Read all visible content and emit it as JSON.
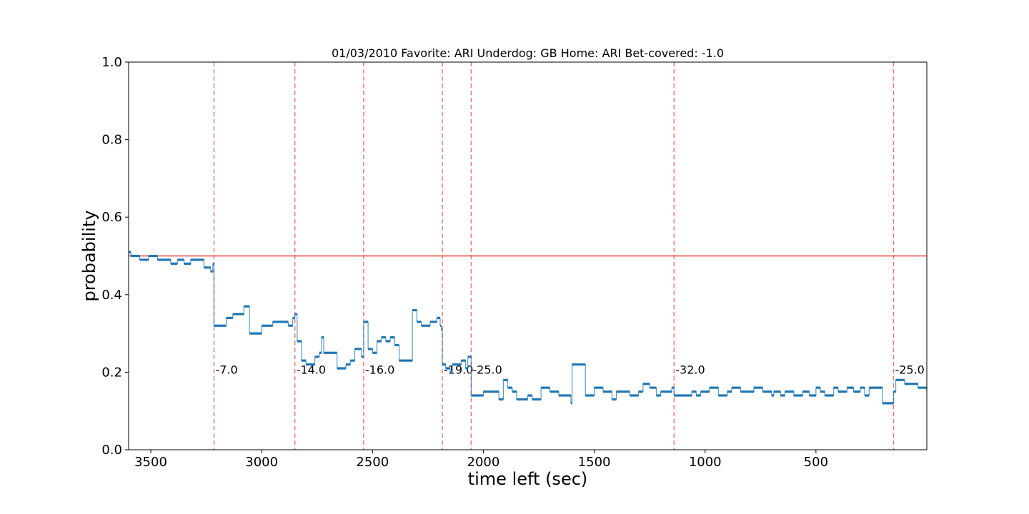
{
  "chart_data": {
    "type": "line",
    "title": "01/03/2010 Favorite: ARI Underdog: GB Home: ARI Bet-covered: -1.0",
    "xlabel": "time left (sec)",
    "ylabel": "probability",
    "xlim": [
      3600,
      0
    ],
    "ylim": [
      0.0,
      1.0
    ],
    "x_ticks": [
      3500,
      3000,
      2500,
      2000,
      1500,
      1000,
      500
    ],
    "x_tick_labels": [
      "3500",
      "3000",
      "2500",
      "2000",
      "1500",
      "1000",
      "500"
    ],
    "y_ticks": [
      0.0,
      0.2,
      0.4,
      0.6,
      0.8,
      1.0
    ],
    "y_tick_labels": [
      "0.0",
      "0.2",
      "0.4",
      "0.6",
      "0.8",
      "1.0"
    ],
    "grid": false,
    "reference_line": {
      "y": 0.5,
      "color": "#e8443a"
    },
    "colors": {
      "series": "#1f77b4",
      "reference": "#e8443a",
      "events": "#f07070"
    },
    "events": [
      {
        "x": 3215,
        "label": "-7.0"
      },
      {
        "x": 2850,
        "label": "-14.0"
      },
      {
        "x": 2540,
        "label": "-16.0"
      },
      {
        "x": 2185,
        "label": "-19.0"
      },
      {
        "x": 2055,
        "label": "-25.0"
      },
      {
        "x": 1140,
        "label": "-32.0"
      },
      {
        "x": 150,
        "label": "-25.0"
      }
    ],
    "series": [
      {
        "x": [
          3600,
          3590,
          3550,
          3510,
          3470,
          3440,
          3410,
          3380,
          3350,
          3320,
          3300,
          3260,
          3240,
          3230,
          3220,
          3215,
          3210,
          3160,
          3130,
          3080,
          3055,
          3050,
          3000,
          2950,
          2910,
          2880,
          2860,
          2850,
          2840,
          2820,
          2800,
          2760,
          2740,
          2730,
          2720,
          2700,
          2660,
          2620,
          2600,
          2580,
          2560,
          2550,
          2540,
          2520,
          2500,
          2480,
          2460,
          2440,
          2420,
          2400,
          2380,
          2350,
          2320,
          2300,
          2280,
          2260,
          2240,
          2210,
          2195,
          2190,
          2185,
          2170,
          2150,
          2140,
          2120,
          2100,
          2080,
          2070,
          2060,
          2055,
          2020,
          2000,
          1960,
          1930,
          1910,
          1890,
          1870,
          1850,
          1830,
          1800,
          1780,
          1740,
          1720,
          1700,
          1680,
          1660,
          1620,
          1605,
          1600,
          1580,
          1540,
          1500,
          1460,
          1420,
          1400,
          1370,
          1340,
          1300,
          1280,
          1250,
          1220,
          1200,
          1150,
          1140,
          1100,
          1060,
          1040,
          1020,
          980,
          940,
          900,
          880,
          840,
          800,
          780,
          740,
          700,
          690,
          660,
          640,
          600,
          560,
          530,
          500,
          480,
          460,
          420,
          400,
          360,
          330,
          300,
          280,
          260,
          200,
          160,
          150,
          140,
          100,
          60,
          40,
          20,
          0
        ],
        "y": [
          0.51,
          0.5,
          0.49,
          0.5,
          0.49,
          0.49,
          0.48,
          0.49,
          0.48,
          0.49,
          0.49,
          0.47,
          0.47,
          0.46,
          0.48,
          0.32,
          0.32,
          0.34,
          0.35,
          0.37,
          0.3,
          0.3,
          0.32,
          0.33,
          0.33,
          0.32,
          0.34,
          0.35,
          0.28,
          0.23,
          0.22,
          0.24,
          0.25,
          0.29,
          0.25,
          0.25,
          0.21,
          0.22,
          0.23,
          0.26,
          0.26,
          0.24,
          0.33,
          0.26,
          0.25,
          0.28,
          0.29,
          0.28,
          0.29,
          0.27,
          0.23,
          0.23,
          0.36,
          0.33,
          0.32,
          0.32,
          0.33,
          0.34,
          0.32,
          0.31,
          0.22,
          0.21,
          0.2,
          0.22,
          0.22,
          0.23,
          0.21,
          0.24,
          0.24,
          0.14,
          0.14,
          0.15,
          0.15,
          0.13,
          0.18,
          0.16,
          0.15,
          0.13,
          0.13,
          0.14,
          0.13,
          0.16,
          0.16,
          0.15,
          0.15,
          0.14,
          0.14,
          0.12,
          0.22,
          0.22,
          0.14,
          0.16,
          0.15,
          0.13,
          0.15,
          0.15,
          0.14,
          0.15,
          0.17,
          0.16,
          0.14,
          0.15,
          0.16,
          0.14,
          0.14,
          0.15,
          0.14,
          0.15,
          0.16,
          0.14,
          0.15,
          0.16,
          0.15,
          0.15,
          0.16,
          0.15,
          0.14,
          0.15,
          0.14,
          0.15,
          0.14,
          0.15,
          0.14,
          0.16,
          0.15,
          0.14,
          0.16,
          0.15,
          0.16,
          0.15,
          0.16,
          0.14,
          0.16,
          0.12,
          0.12,
          0.15,
          0.18,
          0.17,
          0.17,
          0.16,
          0.16,
          0.15
        ]
      }
    ]
  }
}
